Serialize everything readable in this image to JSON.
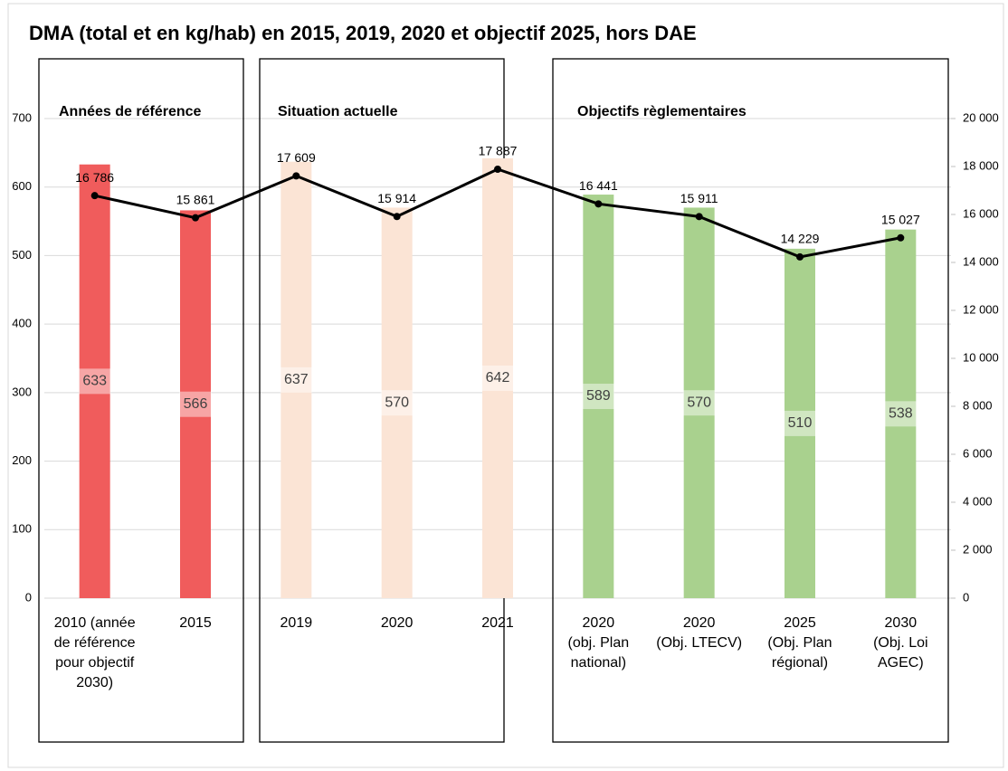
{
  "chart_data": {
    "type": "bar",
    "title": "DMA (total et en kg/hab) en 2015, 2019, 2020 et objectif 2025, hors DAE",
    "panels": [
      {
        "title": "Années de référence"
      },
      {
        "title": "Situation actuelle"
      },
      {
        "title": "Objectifs règlementaires"
      }
    ],
    "categories": [
      "2010 (année\nde référence\npour objectif\n2030)",
      "2015",
      "2019",
      "2020",
      "2021",
      "2020\n(obj. Plan\nnational)",
      "2020\n(Obj. LTECV)",
      "2025\n(Obj. Plan\nrégional)",
      "2030\n(Obj. Loi\nAGEC)"
    ],
    "series": [
      {
        "type": "bar",
        "colors": [
          "#f05c5c",
          "#f05c5c",
          "#fbe4d5",
          "#fbe4d5",
          "#fbe4d5",
          "#a9d18e",
          "#a9d18e",
          "#a9d18e",
          "#a9d18e"
        ],
        "values": [
          633,
          566,
          637,
          570,
          642,
          589,
          570,
          510,
          538
        ]
      },
      {
        "type": "line",
        "axis": "y2",
        "color": "#000000",
        "values": [
          16786,
          15861,
          17609,
          15914,
          17887,
          16441,
          15911,
          14229,
          15027
        ],
        "value_labels": [
          "16 786",
          "15 861",
          "17 609",
          "15 914",
          "17 887",
          "16 441",
          "15 911",
          "14 229",
          "15 027"
        ]
      }
    ],
    "ylim": [
      0,
      700
    ],
    "yticks": [
      0,
      100,
      200,
      300,
      400,
      500,
      600,
      700
    ],
    "y2lim": [
      0,
      20000
    ],
    "y2ticks": [
      0,
      {
        "value": 2000,
        "label": "2 000"
      },
      {
        "value": 4000,
        "label": "4 000"
      },
      {
        "value": 6000,
        "label": "6 000"
      },
      {
        "value": 8000,
        "label": "8 000"
      },
      {
        "value": 10000,
        "label": "10 000"
      },
      {
        "value": 12000,
        "label": "12 000"
      },
      {
        "value": 14000,
        "label": "14 000"
      },
      {
        "value": 16000,
        "label": "16 000"
      },
      {
        "value": 18000,
        "label": "18 000"
      },
      {
        "value": 20000,
        "label": "20 000"
      }
    ],
    "grid": true
  }
}
